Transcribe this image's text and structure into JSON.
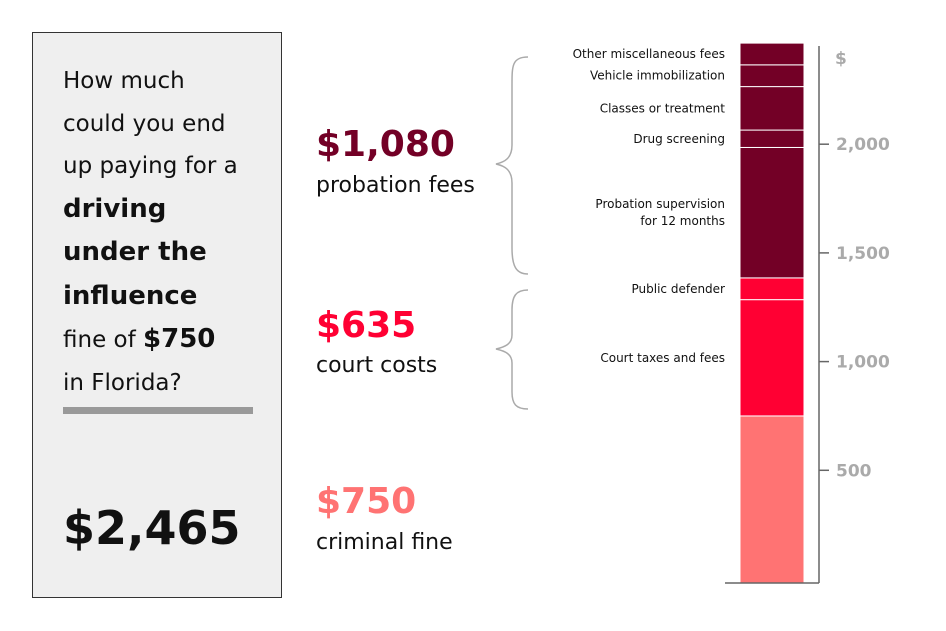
{
  "question": {
    "line1": "How much",
    "line2": "could you end",
    "line3": "up paying for a",
    "bold1": "driving",
    "bold2": "under the",
    "bold3": "influence",
    "pre_amount": "fine of ",
    "amount": "$750",
    "line_last": "in Florida?"
  },
  "total": "$2,465",
  "groups": [
    {
      "amount": "$1,080",
      "label": "probation fees",
      "color": "#730026"
    },
    {
      "amount": "$635",
      "label": "court costs",
      "color": "#ff0033"
    },
    {
      "amount": "$750",
      "label": "criminal fine",
      "color": "#ff7373"
    }
  ],
  "chart_data": {
    "type": "bar",
    "stacked": true,
    "ylabel": "$",
    "ylim": [
      0,
      2465
    ],
    "yticks": [
      500,
      1000,
      1500,
      2000
    ],
    "ytick_labels": [
      "500",
      "1,000",
      "1,500",
      "2,000"
    ],
    "segments": [
      {
        "name": "criminal fine",
        "value": 750,
        "color": "#ff7373",
        "label": ""
      },
      {
        "name": "Court taxes and fees",
        "value": 535,
        "color": "#ff0033",
        "label": "Court taxes and fees"
      },
      {
        "name": "Public defender",
        "value": 100,
        "color": "#ff0033",
        "label": "Public defender"
      },
      {
        "name": "Probation supervision for 12 months",
        "value": 600,
        "color": "#730026",
        "label": "Probation supervision|for 12 months"
      },
      {
        "name": "Drug screening",
        "value": 80,
        "color": "#730026",
        "label": "Drug screening"
      },
      {
        "name": "Classes or treatment",
        "value": 200,
        "color": "#730026",
        "label": "Classes or treatment"
      },
      {
        "name": "Vehicle immobilization",
        "value": 100,
        "color": "#730026",
        "label": "Vehicle immobilization"
      },
      {
        "name": "Other miscellaneous fees",
        "value": 100,
        "color": "#730026",
        "label": "Other miscellaneous fees"
      }
    ]
  }
}
